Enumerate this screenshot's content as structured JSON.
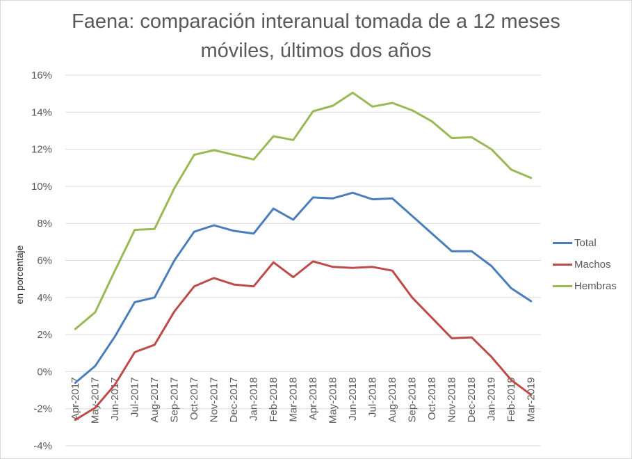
{
  "chart_data": {
    "type": "line",
    "title_lines": [
      "Faena: comparación interanual tomada de a 12 meses",
      "móviles, últimos dos años"
    ],
    "xlabel": "",
    "ylabel": "en porcentaje",
    "ylim": [
      -4,
      16
    ],
    "y_ticks": [
      16,
      14,
      12,
      10,
      8,
      6,
      4,
      2,
      0,
      -2,
      -4
    ],
    "y_tick_labels": [
      "16%",
      "14%",
      "12%",
      "10%",
      "8%",
      "6%",
      "4%",
      "2%",
      "0%",
      "-2%",
      "-4%"
    ],
    "grid": true,
    "legend_position": "right",
    "categories": [
      "Apr-2017",
      "May-2017",
      "Jun-2017",
      "Jul-2017",
      "Aug-2017",
      "Sep-2017",
      "Oct-2017",
      "Nov-2017",
      "Dec-2017",
      "Jan-2018",
      "Feb-2018",
      "Mar-2018",
      "Apr-2018",
      "May-2018",
      "Jun-2018",
      "Jul-2018",
      "Aug-2018",
      "Sep-2018",
      "Oct-2018",
      "Nov-2018",
      "Dec-2018",
      "Jan-2019",
      "Feb-2019",
      "Mar-2019"
    ],
    "series": [
      {
        "name": "Total",
        "color": "#4a7ebb",
        "values": [
          -0.6,
          0.3,
          1.9,
          3.75,
          4.0,
          6.0,
          7.55,
          7.9,
          7.6,
          7.45,
          8.8,
          8.2,
          9.4,
          9.35,
          9.65,
          9.3,
          9.35,
          8.4,
          7.45,
          6.5,
          6.5,
          5.7,
          4.5,
          3.8
        ]
      },
      {
        "name": "Machos",
        "color": "#be4b48",
        "values": [
          -2.6,
          -1.95,
          -0.7,
          1.05,
          1.45,
          3.25,
          4.6,
          5.05,
          4.7,
          4.6,
          5.9,
          5.1,
          5.95,
          5.65,
          5.6,
          5.65,
          5.45,
          4.0,
          2.9,
          1.8,
          1.85,
          0.8,
          -0.45,
          -1.25
        ]
      },
      {
        "name": "Hembras",
        "color": "#98b954",
        "values": [
          2.3,
          3.2,
          5.45,
          7.65,
          7.7,
          9.9,
          11.7,
          11.95,
          11.7,
          11.45,
          12.7,
          12.5,
          14.05,
          14.35,
          15.05,
          14.3,
          14.5,
          14.1,
          13.5,
          12.6,
          12.65,
          12.0,
          10.9,
          10.45
        ]
      }
    ]
  }
}
